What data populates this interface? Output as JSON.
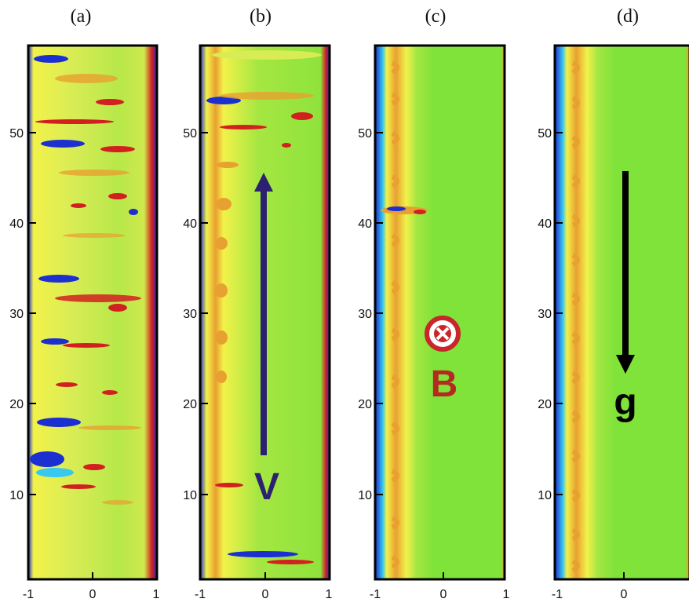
{
  "panels": [
    {
      "id": "a",
      "label": "(a)"
    },
    {
      "id": "b",
      "label": "(b)"
    },
    {
      "id": "c",
      "label": "(c)"
    },
    {
      "id": "d",
      "label": "(d)"
    }
  ],
  "y_ticks": [
    "10",
    "20",
    "30",
    "40",
    "50"
  ],
  "x_ticks": [
    "-1",
    "0",
    "1"
  ],
  "annotations": {
    "velocity": {
      "text": "V",
      "direction": "up",
      "color": "#2b2170"
    },
    "magnetic_field": {
      "text": "B",
      "symbol": "into-page-circle-cross",
      "color": "#b52a20"
    },
    "gravity": {
      "text": "g",
      "direction": "down",
      "color": "#000000"
    }
  },
  "colors": {
    "background_field": "#7fe33a",
    "high": "#d21f1f",
    "mid_high": "#e8a030",
    "mid": "#f2f24a",
    "low": "#1c2fd0",
    "mid_low": "#37c8f0"
  }
}
